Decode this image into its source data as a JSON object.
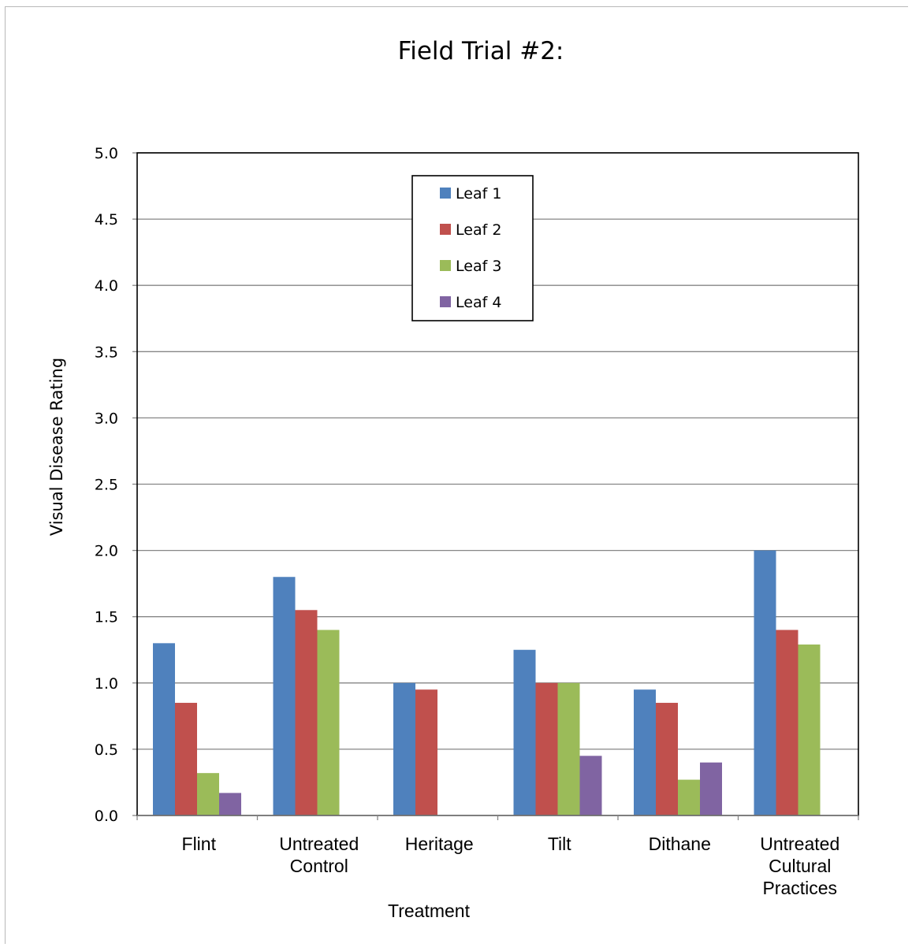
{
  "chart_data": {
    "type": "bar",
    "title": "Field Trial #2:",
    "xlabel": "Treatment",
    "ylabel": "Visual Disease Rating",
    "ylim": [
      0,
      5
    ],
    "yticks": [
      "0.0",
      "0.5",
      "1.0",
      "1.5",
      "2.0",
      "2.5",
      "3.0",
      "3.5",
      "4.0",
      "4.5",
      "5.0"
    ],
    "grid": true,
    "legend_position": "top-center",
    "categories": [
      [
        "Flint"
      ],
      [
        "Untreated",
        "Control"
      ],
      [
        "Heritage"
      ],
      [
        "Tilt"
      ],
      [
        "Dithane"
      ],
      [
        "Untreated",
        "Cultural",
        "Practices"
      ]
    ],
    "series": [
      {
        "name": "Leaf 1",
        "color": "#4f81bd",
        "values": [
          1.3,
          1.8,
          1.0,
          1.25,
          0.95,
          2.0
        ]
      },
      {
        "name": "Leaf 2",
        "color": "#c0504d",
        "values": [
          0.85,
          1.55,
          0.95,
          1.0,
          0.85,
          1.4
        ]
      },
      {
        "name": "Leaf 3",
        "color": "#9bbb59",
        "values": [
          0.32,
          1.4,
          null,
          1.0,
          0.27,
          1.29
        ]
      },
      {
        "name": "Leaf 4",
        "color": "#8064a2",
        "values": [
          0.17,
          null,
          null,
          0.45,
          0.4,
          null
        ]
      }
    ]
  }
}
